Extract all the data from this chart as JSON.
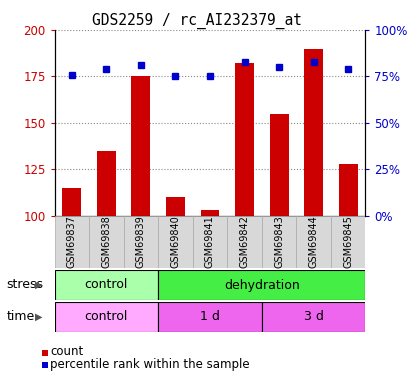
{
  "title": "GDS2259 / rc_AI232379_at",
  "samples": [
    "GSM69837",
    "GSM69838",
    "GSM69839",
    "GSM69840",
    "GSM69841",
    "GSM69842",
    "GSM69843",
    "GSM69844",
    "GSM69845"
  ],
  "counts": [
    115,
    135,
    175,
    110,
    103,
    182,
    155,
    190,
    128
  ],
  "percentiles": [
    76,
    79,
    81,
    75,
    75,
    83,
    80,
    83,
    79
  ],
  "ylim_left": [
    100,
    200
  ],
  "ylim_right": [
    0,
    100
  ],
  "yticks_left": [
    100,
    125,
    150,
    175,
    200
  ],
  "yticks_right": [
    0,
    25,
    50,
    75,
    100
  ],
  "bar_color": "#cc0000",
  "dot_color": "#0000cc",
  "stress_labels": [
    {
      "text": "control",
      "start": 0,
      "end": 3,
      "color": "#aaffaa"
    },
    {
      "text": "dehydration",
      "start": 3,
      "end": 9,
      "color": "#44ee44"
    }
  ],
  "time_labels": [
    {
      "text": "control",
      "start": 0,
      "end": 3,
      "color": "#ffaaff"
    },
    {
      "text": "1 d",
      "start": 3,
      "end": 6,
      "color": "#ee66ee"
    },
    {
      "text": "3 d",
      "start": 6,
      "end": 9,
      "color": "#ee66ee"
    }
  ],
  "grid_color": "#888888",
  "label_color_red": "#cc0000",
  "label_color_blue": "#0000cc",
  "legend_count": "count",
  "legend_pct": "percentile rank within the sample",
  "right_ytick_labels": [
    "0%",
    "25%",
    "50%",
    "75%",
    "100%"
  ]
}
